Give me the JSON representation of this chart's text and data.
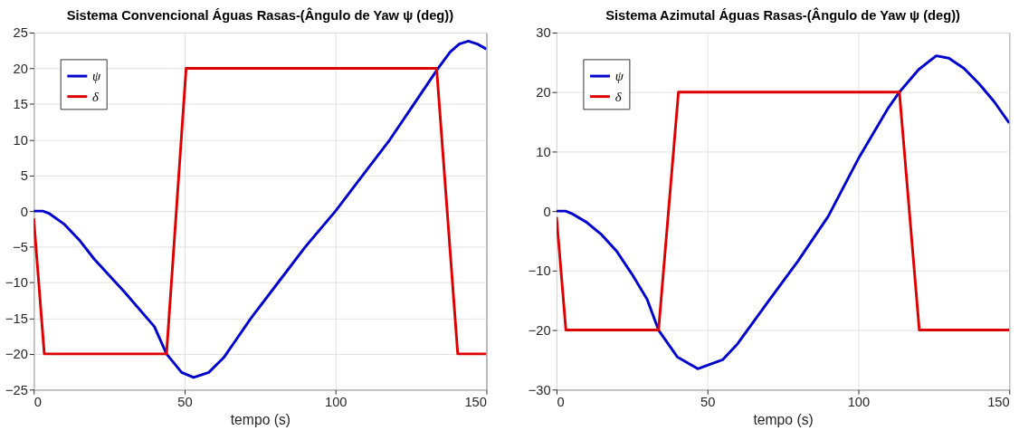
{
  "chart_data": [
    {
      "type": "line",
      "title": "Sistema Convencional Águas Rasas-(Ângulo de Yaw ψ (deg))",
      "xlabel": "tempo (s)",
      "xlim": [
        0,
        150
      ],
      "xticks": [
        0,
        50,
        100,
        150
      ],
      "ylim": [
        -25,
        25
      ],
      "yticks": [
        -25,
        -20,
        -15,
        -10,
        -5,
        0,
        5,
        10,
        15,
        20,
        25
      ],
      "grid": true,
      "legend": "top left",
      "series": [
        {
          "name": "ψ",
          "color": "#0000cc",
          "x": [
            0,
            3,
            5,
            10,
            15,
            20,
            30,
            40,
            44,
            49,
            53,
            58,
            63,
            72,
            81,
            90,
            100,
            109,
            118,
            126,
            134,
            138,
            141,
            144,
            147,
            150
          ],
          "values": [
            0,
            0,
            -0.3,
            -1.8,
            -4,
            -6.7,
            -11.3,
            -16.2,
            -20,
            -22.6,
            -23.3,
            -22.6,
            -20.5,
            -15,
            -10,
            -5,
            0,
            5,
            10,
            15,
            20,
            22.3,
            23.4,
            23.8,
            23.4,
            22.7
          ]
        },
        {
          "name": "δ",
          "color": "#dd0000",
          "x": [
            0,
            3.5,
            44,
            50.5,
            133.5,
            140.5,
            150
          ],
          "values": [
            -1,
            -20,
            -20,
            20,
            20,
            -20,
            -20
          ]
        }
      ]
    },
    {
      "type": "line",
      "title": "Sistema Azimutal Águas Rasas-(Ângulo de Yaw ψ (deg))",
      "xlabel": "tempo (s)",
      "xlim": [
        0,
        150
      ],
      "xticks": [
        0,
        50,
        100,
        150
      ],
      "ylim": [
        -30,
        30
      ],
      "yticks": [
        -30,
        -20,
        -10,
        0,
        10,
        20,
        30
      ],
      "grid": true,
      "legend": "top left",
      "series": [
        {
          "name": "ψ",
          "color": "#0000cc",
          "x": [
            0,
            3,
            5,
            10,
            15,
            20,
            25,
            30,
            33.8,
            40,
            46.8,
            55,
            60,
            70,
            80,
            90,
            100,
            110,
            113.6,
            120,
            125.8,
            130,
            135,
            140,
            145,
            150
          ],
          "values": [
            0,
            0,
            -0.4,
            -1.9,
            -4,
            -6.8,
            -10.6,
            -14.8,
            -20,
            -24.5,
            -26.5,
            -25,
            -22.3,
            -15.3,
            -8.4,
            -0.9,
            8.8,
            17.4,
            20,
            23.8,
            26.1,
            25.7,
            24,
            21.4,
            18.4,
            14.8
          ]
        },
        {
          "name": "δ",
          "color": "#dd0000",
          "x": [
            0,
            3.1,
            33.8,
            40.4,
            113.6,
            120.2,
            150
          ],
          "values": [
            -1,
            -20,
            -20,
            20,
            20,
            -20,
            -20
          ]
        }
      ]
    }
  ]
}
